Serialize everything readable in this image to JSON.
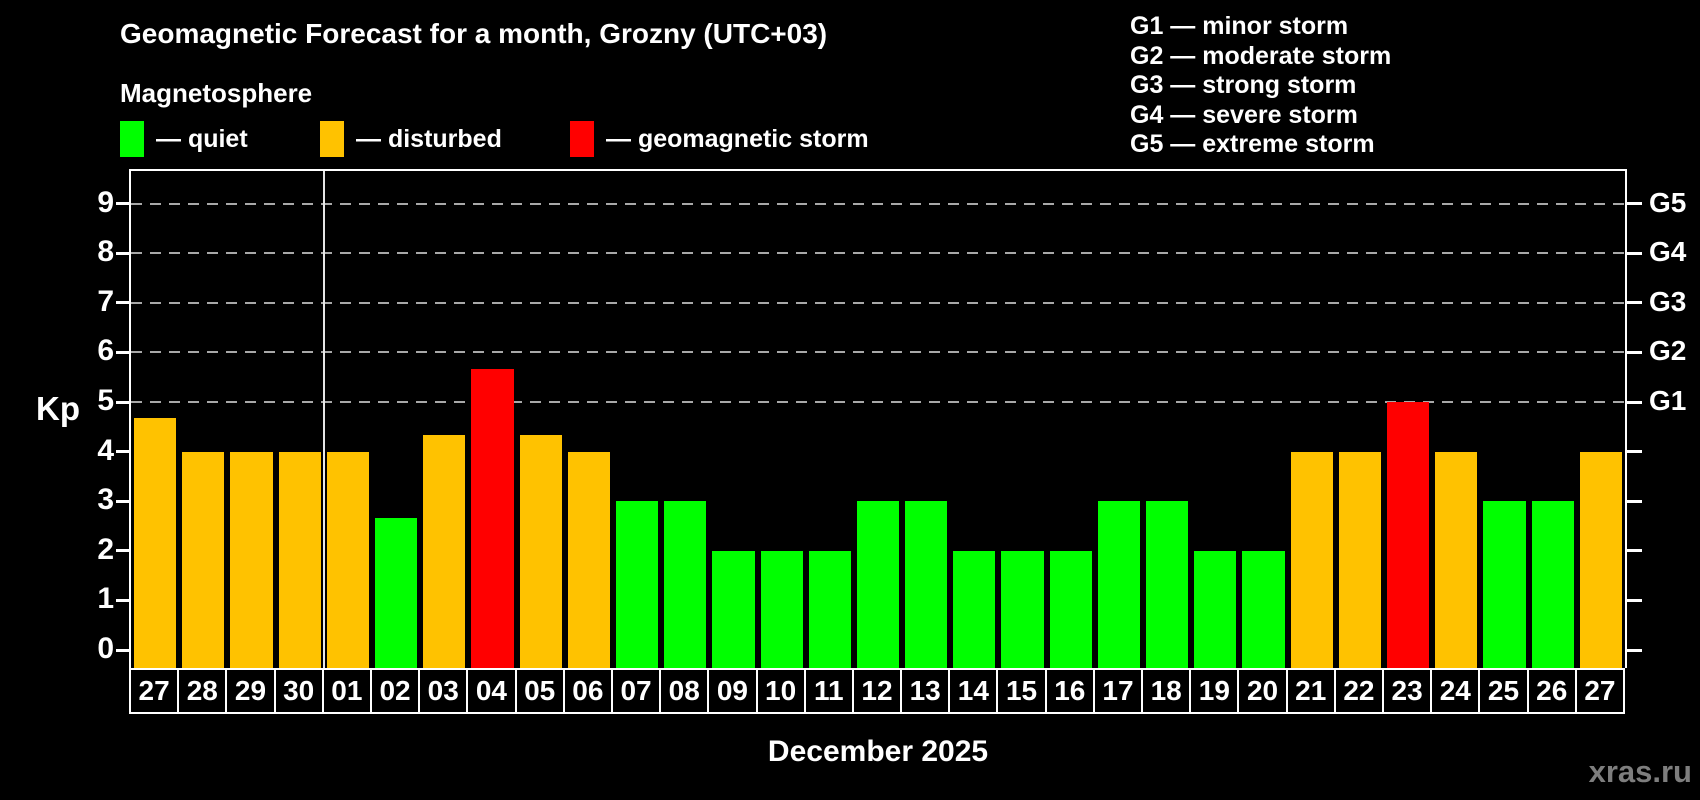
{
  "header": {
    "title": "Geomagnetic Forecast for a month, Grozny (UTC+03)",
    "subtitle": "Magnetosphere",
    "legend": [
      {
        "label": "— quiet",
        "status": "quiet"
      },
      {
        "label": "— disturbed",
        "status": "disturbed"
      },
      {
        "label": "— geomagnetic storm",
        "status": "storm"
      }
    ],
    "storm_scale_legend": [
      "G1 — minor storm",
      "G2 — moderate storm",
      "G3 — strong storm",
      "G4 — severe storm",
      "G5 — extreme storm"
    ]
  },
  "chart_data": {
    "type": "bar",
    "title": "Geomagnetic Forecast for a month, Grozny (UTC+03)",
    "xlabel": "December 2025",
    "ylabel": "Kp",
    "ylim": [
      0,
      9.5
    ],
    "yticks": [
      0,
      1,
      2,
      3,
      4,
      5,
      6,
      7,
      8,
      9
    ],
    "gridlines_at": [
      5,
      6,
      7,
      8,
      9
    ],
    "grid": "horizontal dashed lines at storm levels G1-G5 only",
    "legend_position": "top-left",
    "right_axis": [
      {
        "label": "G1",
        "kp": 5
      },
      {
        "label": "G2",
        "kp": 6
      },
      {
        "label": "G3",
        "kp": 7
      },
      {
        "label": "G4",
        "kp": 8
      },
      {
        "label": "G5",
        "kp": 9
      }
    ],
    "categories": [
      "27",
      "28",
      "29",
      "30",
      "01",
      "02",
      "03",
      "04",
      "05",
      "06",
      "07",
      "08",
      "09",
      "10",
      "11",
      "12",
      "13",
      "14",
      "15",
      "16",
      "17",
      "18",
      "19",
      "20",
      "21",
      "22",
      "23",
      "24",
      "25",
      "26",
      "27"
    ],
    "values": [
      4.67,
      4,
      4,
      4,
      4,
      2.67,
      4.33,
      5.67,
      4.33,
      4,
      3,
      3,
      2,
      2,
      2,
      3,
      3,
      2,
      2,
      2,
      3,
      3,
      2,
      2,
      4,
      4,
      5,
      4,
      3,
      3,
      4
    ],
    "statuses": [
      "disturbed",
      "disturbed",
      "disturbed",
      "disturbed",
      "disturbed",
      "quiet",
      "disturbed",
      "storm",
      "disturbed",
      "disturbed",
      "quiet",
      "quiet",
      "quiet",
      "quiet",
      "quiet",
      "quiet",
      "quiet",
      "quiet",
      "quiet",
      "quiet",
      "quiet",
      "quiet",
      "quiet",
      "quiet",
      "disturbed",
      "disturbed",
      "storm",
      "disturbed",
      "quiet",
      "quiet",
      "disturbed"
    ],
    "status_colors": {
      "quiet": "#00ff00",
      "disturbed": "#ffc200",
      "storm": "#ff0000"
    },
    "month_separator_after_index": 3
  },
  "footer": {
    "watermark": "xras.ru"
  }
}
